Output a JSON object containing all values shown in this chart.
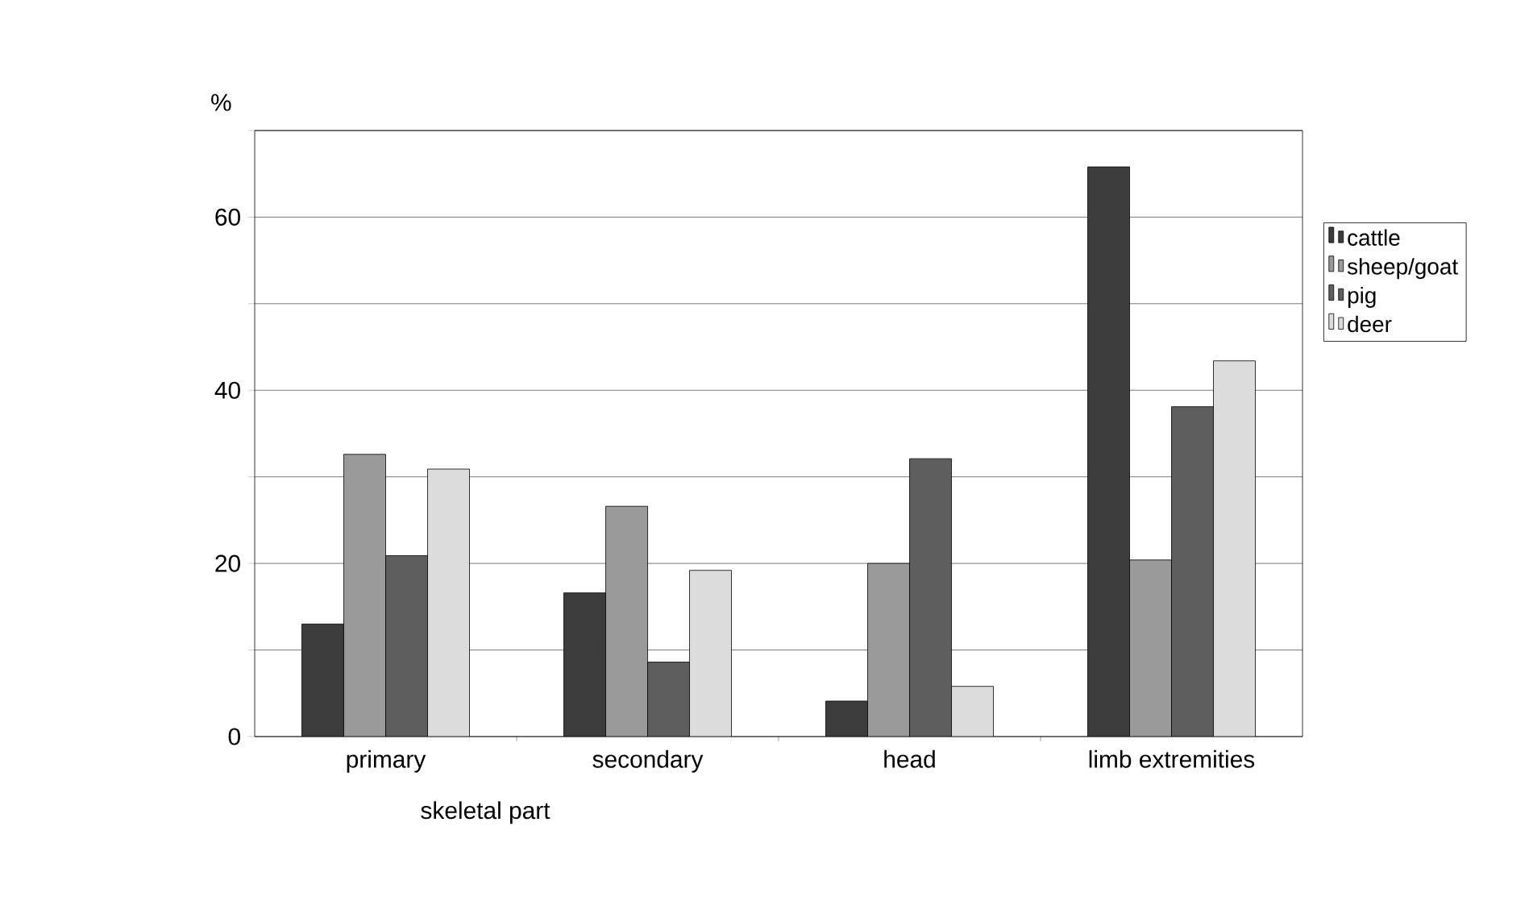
{
  "chart_data": {
    "type": "bar",
    "xlabel": "skeletal part",
    "ylabel": "%",
    "categories": [
      "primary",
      "secondary",
      "head",
      "limb extremities"
    ],
    "series": [
      {
        "name": "cattle",
        "color": "#3c3c3c",
        "values": [
          13.0,
          16.6,
          4.1,
          65.8
        ]
      },
      {
        "name": "sheep/goat",
        "color": "#9a9a9a",
        "values": [
          32.6,
          26.6,
          20.0,
          20.4
        ]
      },
      {
        "name": "pig",
        "color": "#5e5e5e",
        "values": [
          20.9,
          8.6,
          32.1,
          38.1
        ]
      },
      {
        "name": "deer",
        "color": "#dcdcdc",
        "values": [
          30.9,
          19.2,
          5.8,
          43.4
        ]
      }
    ],
    "ylim": [
      0,
      70
    ],
    "yticks": [
      0,
      {
        "value": 10,
        "label": null
      },
      20,
      {
        "value": 30,
        "label": null
      },
      40,
      {
        "value": 50,
        "label": null
      },
      60,
      {
        "value": 70,
        "label": null
      }
    ],
    "grid": "y",
    "legend": "right"
  }
}
